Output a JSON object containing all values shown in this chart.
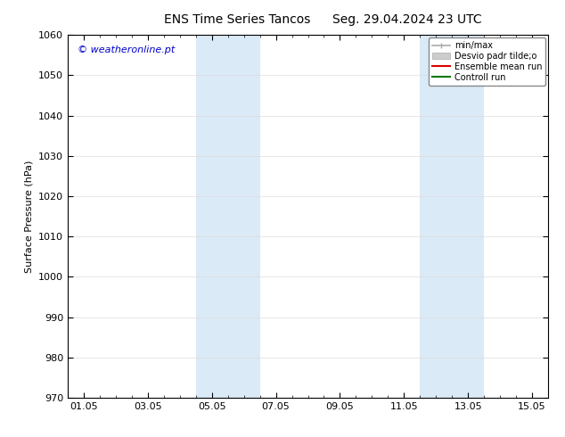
{
  "title_left": "ENS Time Series Tancos",
  "title_right": "Seg. 29.04.2024 23 UTC",
  "ylabel": "Surface Pressure (hPa)",
  "ylim": [
    970,
    1060
  ],
  "yticks": [
    970,
    980,
    990,
    1000,
    1010,
    1020,
    1030,
    1040,
    1050,
    1060
  ],
  "xlim_start": -0.5,
  "xlim_end": 14.5,
  "xtick_labels": [
    "01.05",
    "03.05",
    "05.05",
    "07.05",
    "09.05",
    "11.05",
    "13.05",
    "15.05"
  ],
  "xtick_positions": [
    0.0,
    2.0,
    4.0,
    6.0,
    8.0,
    10.0,
    12.0,
    14.0
  ],
  "shaded_bands": [
    {
      "xmin": 3.5,
      "xmax": 5.5,
      "color": "#daeaf7"
    },
    {
      "xmin": 10.5,
      "xmax": 12.5,
      "color": "#daeaf7"
    }
  ],
  "watermark_text": "© weatheronline.pt",
  "watermark_color": "#0000cc",
  "legend_items": [
    {
      "label": "min/max",
      "color": "#aaaaaa",
      "lw": 1.2,
      "style": "-",
      "type": "line_caps"
    },
    {
      "label": "Desvio padr tilde;o",
      "color": "#cccccc",
      "lw": 8,
      "style": "-",
      "type": "rect"
    },
    {
      "label": "Ensemble mean run",
      "color": "#dd0000",
      "lw": 1.5,
      "style": "-",
      "type": "line"
    },
    {
      "label": "Controll run",
      "color": "#007700",
      "lw": 1.5,
      "style": "-",
      "type": "line"
    }
  ],
  "bg_color": "#ffffff",
  "grid_color": "#dddddd",
  "title_fontsize": 10,
  "axis_label_fontsize": 8,
  "tick_fontsize": 8,
  "font_family": "DejaVu Sans"
}
